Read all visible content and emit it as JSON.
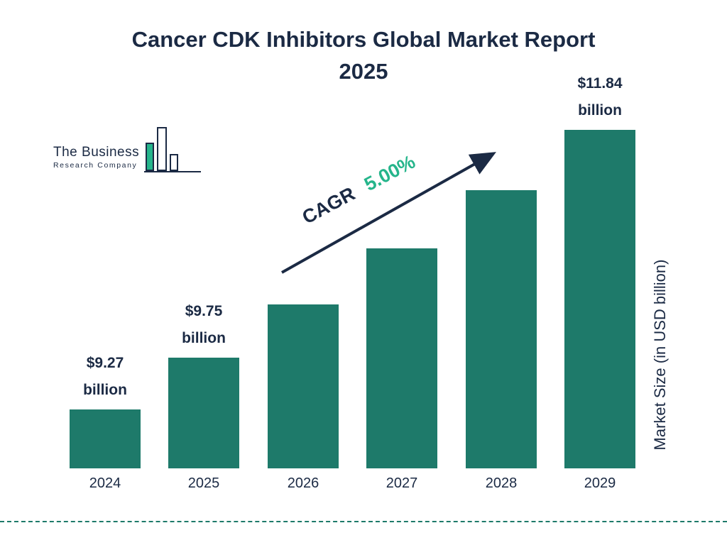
{
  "title": {
    "line1": "Cancer CDK Inhibitors Global Market Report",
    "line2": "2025"
  },
  "logo": {
    "line1": "The Business",
    "line2": "Research Company"
  },
  "cagr": {
    "label": "CAGR",
    "value": "5.00%"
  },
  "y_axis_label": "Market Size (in USD billion)",
  "colors": {
    "bar": "#1e7a6a",
    "navy": "#1b2a44",
    "accent_green": "#25b58b",
    "background": "#ffffff"
  },
  "chart_data": {
    "type": "bar",
    "title": "Cancer CDK Inhibitors Global Market Report 2025",
    "categories": [
      "2024",
      "2025",
      "2026",
      "2027",
      "2028",
      "2029"
    ],
    "values": [
      9.27,
      9.75,
      10.24,
      10.75,
      11.29,
      11.84
    ],
    "bar_labels": [
      "$9.27 billion",
      "$9.75 billion",
      "",
      "",
      "",
      "$11.84 billion"
    ],
    "annotation": "CAGR 5.00%",
    "cagr_percent": 5.0,
    "xlabel": "",
    "ylabel": "Market Size (in USD billion)",
    "ylim": [
      8.73,
      12.0
    ],
    "grid": false,
    "legend": "none",
    "bar_color": "#1e7a6a"
  }
}
